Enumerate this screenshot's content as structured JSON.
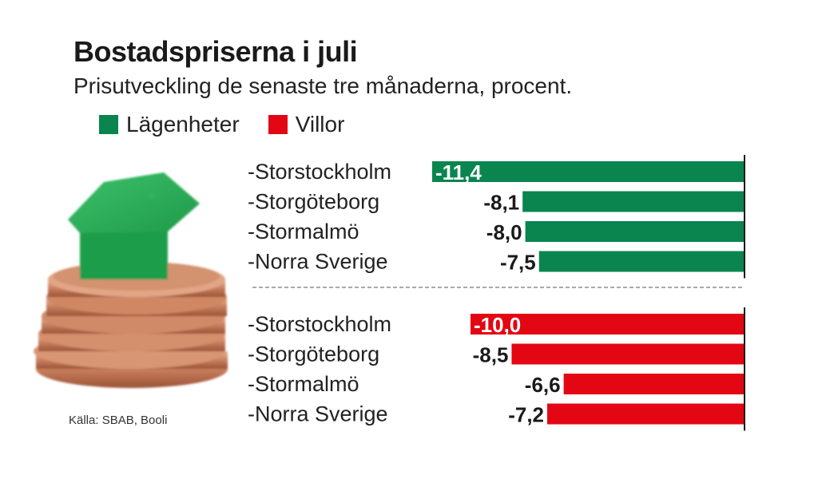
{
  "title": "Bostadspriserna i juli",
  "subtitle": "Prisutveckling de senaste tre månaderna, procent.",
  "source": "Källa: SBAB, Booli",
  "photo": {
    "description": "green-house-on-coin-stack"
  },
  "colors": {
    "lagenheter": "#0a8550",
    "villor": "#e30613",
    "baseline": "#1a1a1a",
    "divider": "#555555"
  },
  "chart_data": {
    "type": "bar",
    "orientation": "horizontal",
    "title": "Bostadspriserna i juli",
    "subtitle": "Prisutveckling de senaste tre månaderna, procent.",
    "legend": {
      "placement": "top-left",
      "entries": [
        "Lägenheter",
        "Villor"
      ]
    },
    "xlim": [
      -11.4,
      0
    ],
    "groups": [
      {
        "name": "Lägenheter",
        "color": "#0a8550",
        "categories": [
          "-Storstockholm",
          "-Storgöteborg",
          "-Stormalmö",
          "-Norra Sverige"
        ],
        "values": [
          -11.4,
          -8.1,
          -8.0,
          -7.5
        ],
        "labels": [
          "-11,4",
          "-8,1",
          "-8,0",
          "-7,5"
        ]
      },
      {
        "name": "Villor",
        "color": "#e30613",
        "categories": [
          "-Storstockholm",
          "-Storgöteborg",
          "-Stormalmö",
          "-Norra Sverige"
        ],
        "values": [
          -10.0,
          -8.5,
          -6.6,
          -7.2
        ],
        "labels": [
          "-10,0",
          "-8,5",
          "-6,6",
          "-7,2"
        ]
      }
    ],
    "source": "Källa: SBAB, Booli"
  }
}
